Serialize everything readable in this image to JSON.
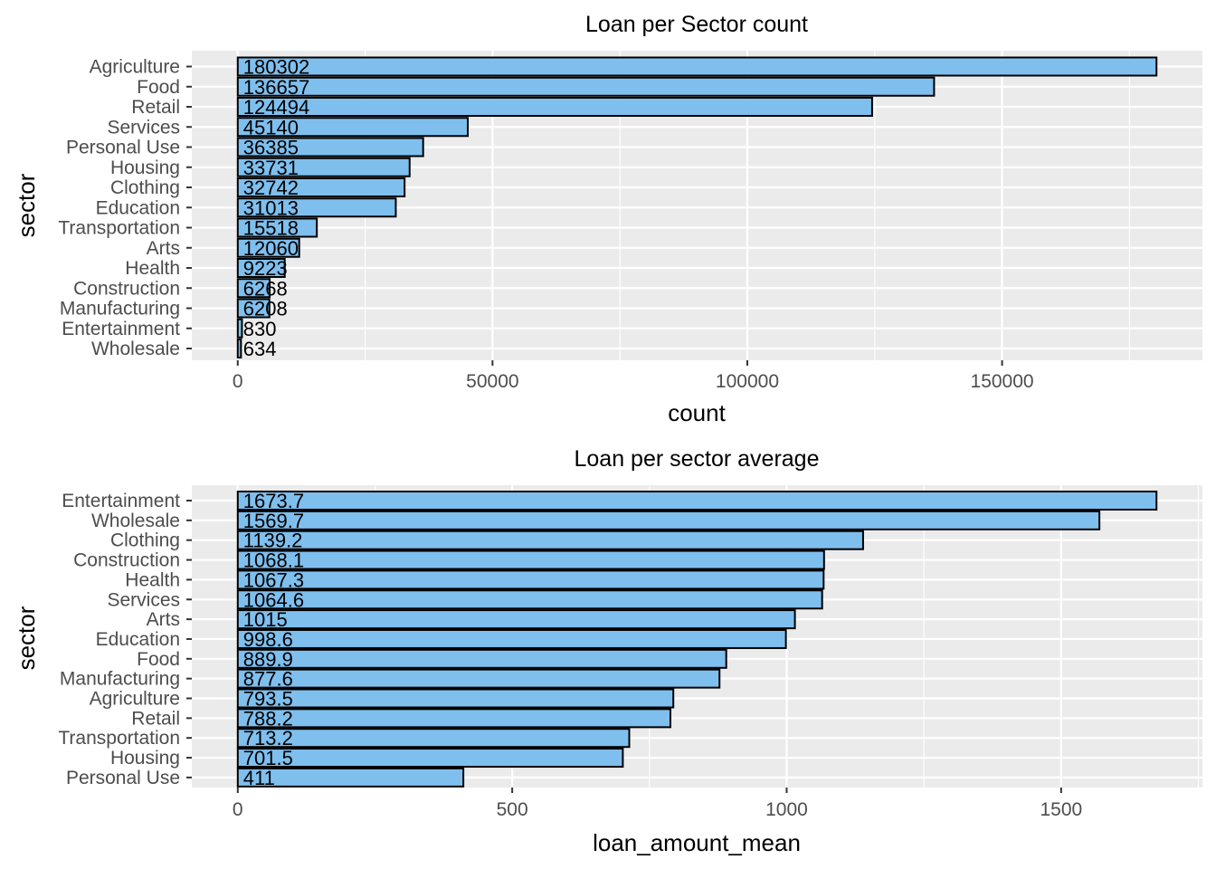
{
  "chart_data": [
    {
      "type": "bar",
      "orientation": "horizontal",
      "title": "Loan per Sector count",
      "xlabel": "count",
      "ylabel": "sector",
      "categories": [
        "Agriculture",
        "Food",
        "Retail",
        "Services",
        "Personal Use",
        "Housing",
        "Clothing",
        "Education",
        "Transportation",
        "Arts",
        "Health",
        "Construction",
        "Manufacturing",
        "Entertainment",
        "Wholesale"
      ],
      "values": [
        180302,
        136657,
        124494,
        45140,
        36385,
        33731,
        32742,
        31013,
        15518,
        12060,
        9223,
        6268,
        6208,
        830,
        634
      ],
      "data_labels": [
        "180302",
        "136657",
        "124494",
        "45140",
        "36385",
        "33731",
        "32742",
        "31013",
        "15518",
        "12060",
        "9223",
        "6268",
        "6208",
        "830",
        "634"
      ],
      "xlim": [
        -9015,
        189317
      ],
      "x_ticks": [
        0,
        50000,
        100000,
        150000
      ],
      "x_tick_labels": [
        "0",
        "50000",
        "100000",
        "150000"
      ],
      "bar_color": "#7fbfee",
      "panel_bg": "#ebebeb",
      "grid": true
    },
    {
      "type": "bar",
      "orientation": "horizontal",
      "title": "Loan per sector average",
      "xlabel": "loan_amount_mean",
      "ylabel": "sector",
      "categories": [
        "Entertainment",
        "Wholesale",
        "Clothing",
        "Construction",
        "Health",
        "Services",
        "Arts",
        "Education",
        "Food",
        "Manufacturing",
        "Agriculture",
        "Retail",
        "Transportation",
        "Housing",
        "Personal Use"
      ],
      "values": [
        1673.7,
        1569.7,
        1139.2,
        1068.1,
        1067.3,
        1064.6,
        1015,
        998.6,
        889.9,
        877.6,
        793.5,
        788.2,
        713.2,
        701.5,
        411
      ],
      "data_labels": [
        "1673.7",
        "1569.7",
        "1139.2",
        "1068.1",
        "1067.3",
        "1064.6",
        "1015",
        "998.6",
        "889.9",
        "877.6",
        "793.5",
        "788.2",
        "713.2",
        "701.5",
        "411"
      ],
      "xlim": [
        -83.7,
        1757.4
      ],
      "x_ticks": [
        0,
        500,
        1000,
        1500
      ],
      "x_tick_labels": [
        "0",
        "500",
        "1000",
        "1500"
      ],
      "bar_color": "#7fbfee",
      "panel_bg": "#ebebeb",
      "grid": true
    }
  ]
}
